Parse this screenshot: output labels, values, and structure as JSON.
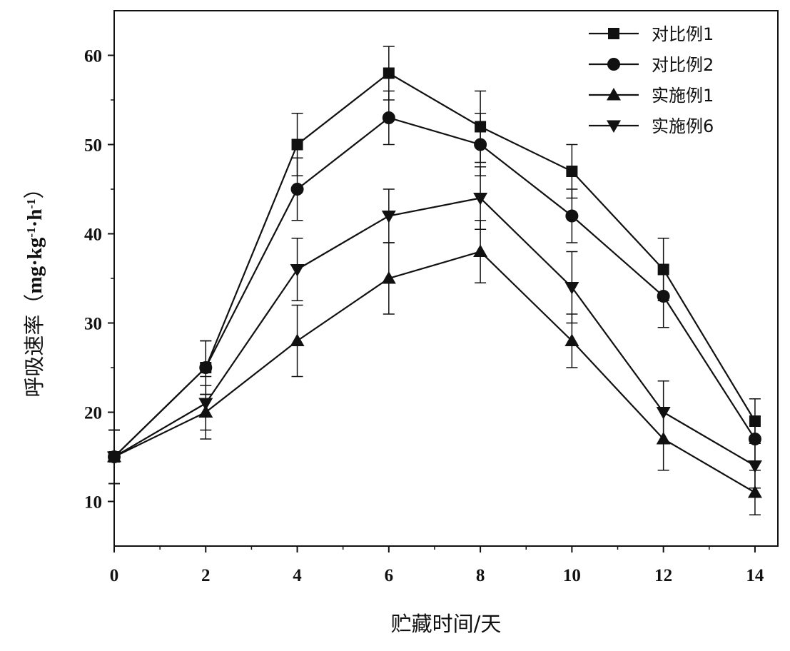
{
  "chart_data": {
    "type": "line",
    "title": "",
    "xlabel": "贮藏时间/天",
    "ylabel": "呼吸速率（mg·kg⁻¹·h⁻¹）",
    "ylabel_main": "呼吸速率（",
    "ylabel_unit": "mg·kg",
    "ylabel_exp1": "-1",
    "ylabel_mid": "·h",
    "ylabel_exp2": "-1",
    "ylabel_close": "）",
    "xlim": [
      0,
      14.5
    ],
    "ylim": [
      5,
      65
    ],
    "x_ticks": [
      0,
      2,
      4,
      6,
      8,
      10,
      12,
      14
    ],
    "y_ticks": [
      10,
      20,
      30,
      40,
      50,
      60
    ],
    "grid": false,
    "legend_position": "top-right",
    "x": [
      0,
      2,
      4,
      6,
      8,
      10,
      12,
      14
    ],
    "series": [
      {
        "name": "对比例1",
        "marker": "square",
        "values": [
          15,
          25,
          50,
          58,
          52,
          47,
          36,
          19
        ],
        "errors": [
          3,
          3,
          3.5,
          3,
          4,
          3,
          3.5,
          2.5
        ]
      },
      {
        "name": "对比例2",
        "marker": "circle",
        "values": [
          15,
          25,
          45,
          53,
          50,
          42,
          33,
          17
        ],
        "errors": [
          3,
          3,
          3.5,
          3,
          3.5,
          3,
          3.5,
          2.5
        ]
      },
      {
        "name": "实施例1",
        "marker": "triangle-up",
        "values": [
          15,
          20,
          28,
          35,
          38,
          28,
          17,
          11
        ],
        "errors": [
          3,
          3,
          4,
          4,
          3.5,
          3,
          3.5,
          2.5
        ]
      },
      {
        "name": "实施例6",
        "marker": "triangle-down",
        "values": [
          15,
          21,
          36,
          42,
          44,
          34,
          20,
          14
        ],
        "errors": [
          3,
          3,
          3.5,
          3,
          3.5,
          4,
          3.5,
          2.5
        ]
      }
    ],
    "colors": {
      "line": "#111111",
      "background": "#ffffff"
    }
  }
}
